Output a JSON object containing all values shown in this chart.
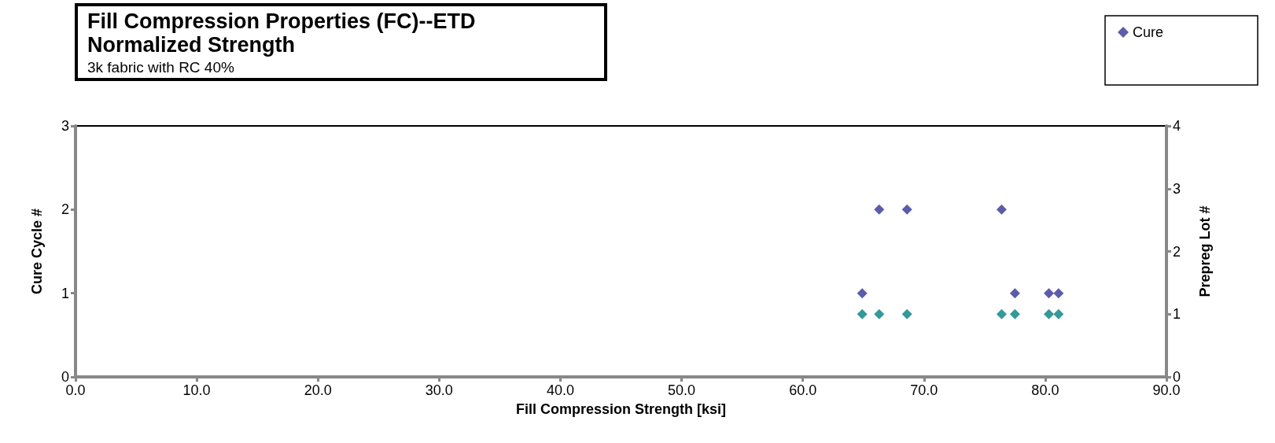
{
  "chart_data": {
    "type": "scatter",
    "title": "Fill Compression Properties (FC)--ETD\nNormalized Strength",
    "subtitle": "3k fabric with RC 40%",
    "xlabel": "Fill Compression Strength [ksi]",
    "ylabel": "Cure Cycle #",
    "y2label": "Prepreg Lot #",
    "series": [
      {
        "name": "Cure",
        "color": "#333399",
        "x": [
          64.9,
          77.5,
          80.3,
          81.1,
          66.3,
          68.6,
          76.4
        ],
        "values": [
          1,
          1,
          1,
          1,
          2,
          2,
          2
        ]
      },
      {
        "color": "#008080",
        "axis": "y2",
        "x": [
          64.9,
          66.3,
          68.6,
          76.4,
          77.5,
          80.3,
          81.1
        ],
        "values": [
          1,
          1,
          1,
          1,
          1,
          1,
          1
        ]
      }
    ],
    "xlim": [
      0,
      90
    ],
    "xticks": [
      {
        "value": 0,
        "label": "0.0"
      },
      {
        "value": 10,
        "label": "10.0"
      },
      {
        "value": 20,
        "label": "20.0"
      },
      {
        "value": 30,
        "label": "30.0"
      },
      {
        "value": 40,
        "label": "40.0"
      },
      {
        "value": 50,
        "label": "50.0"
      },
      {
        "value": 60,
        "label": "60.0"
      },
      {
        "value": 70,
        "label": "70.0"
      },
      {
        "value": 80,
        "label": "80.0"
      },
      {
        "value": 90,
        "label": "90.0"
      }
    ],
    "ylim": [
      0,
      3
    ],
    "yticks": [
      0,
      1,
      2,
      3
    ],
    "y2lim": [
      0,
      4
    ],
    "y2ticks": [
      0,
      1,
      2,
      3,
      4
    ],
    "grid": false,
    "legend": "top right",
    "marker": "diamond"
  }
}
